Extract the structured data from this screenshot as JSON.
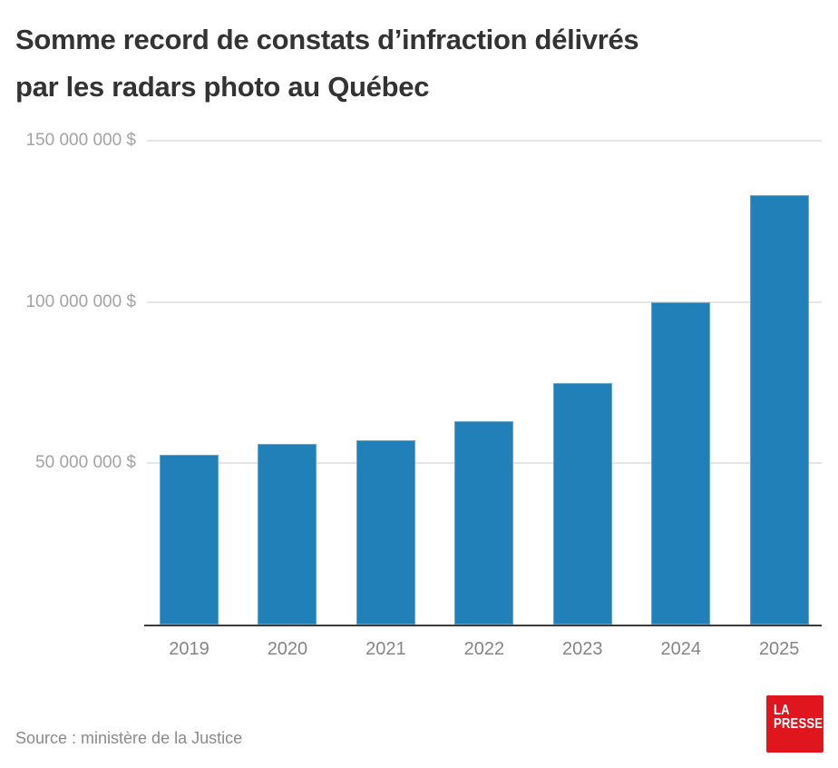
{
  "header": {
    "title_line1": "Somme record de constats d’infraction délivrés",
    "title_line2": "par les radars photo au Québec"
  },
  "chart_data": {
    "type": "bar",
    "title": "Somme record de constats d’infraction délivrés par les radars photo au Québec",
    "categories": [
      "2019",
      "2020",
      "2021",
      "2022",
      "2023",
      "2024",
      "2025"
    ],
    "values": [
      52500000,
      56000000,
      57000000,
      63000000,
      75000000,
      100000000,
      133000000
    ],
    "unit": "$",
    "xlabel": "",
    "ylabel": "",
    "ylim": [
      0,
      150000000
    ],
    "yticks": [
      {
        "value": 150000000,
        "label": "150 000 000 $"
      },
      {
        "value": 100000000,
        "label": "100 000 000 $"
      },
      {
        "value": 50000000,
        "label": "50 000 000 $"
      }
    ],
    "grid": "horizontal",
    "legend": "none",
    "bar_color": "#2280b8",
    "gridline_color": "#e5e5e5",
    "axis_line_color": "#3c3c3c"
  },
  "footer": {
    "source": "Source : ministère de la Justice",
    "logo": {
      "line1": "LA",
      "line2": "PRESSE",
      "bg_color": "#e0161f",
      "text_color": "#ffffff"
    }
  }
}
